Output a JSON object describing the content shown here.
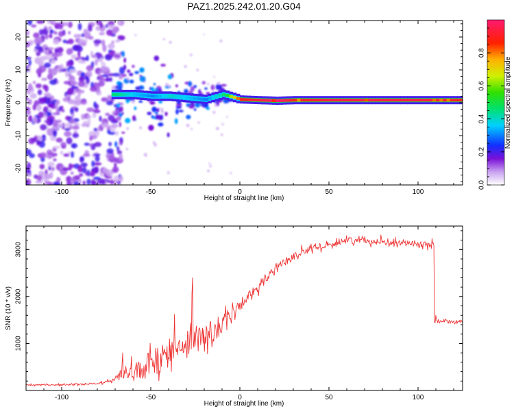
{
  "title": "PAZ1.2025.242.01.20.G04",
  "chart_data": [
    {
      "type": "heatmap",
      "name": "spectrogram",
      "xlabel": "Height of straight line (km)",
      "ylabel": "Frequency (Hz)",
      "xlim": [
        -120,
        125
      ],
      "ylim": [
        -25,
        25
      ],
      "xticks": [
        "-100",
        "-50",
        "0",
        "50",
        "100"
      ],
      "xtick_values": [
        -100,
        -50,
        0,
        50,
        100
      ],
      "yticks": [
        "20",
        "10",
        "0",
        "-10",
        "-20"
      ],
      "ytick_values": [
        20,
        10,
        0,
        -10,
        -20
      ],
      "ridge": {
        "description_values": "dominant frequency ridge near 0.5 Hz",
        "x": [
          -70,
          -60,
          -50,
          -40,
          -30,
          -20,
          -10,
          0,
          10,
          20,
          30,
          50,
          75,
          100,
          125
        ],
        "freq": [
          2.5,
          2.5,
          2.0,
          2.0,
          1.5,
          1.0,
          2.5,
          1.0,
          0.8,
          0.6,
          0.8,
          0.8,
          0.8,
          0.8,
          0.8
        ],
        "amplitude": [
          0.45,
          0.35,
          0.3,
          0.4,
          0.35,
          0.3,
          0.45,
          0.9,
          0.95,
          1.0,
          0.9,
          0.95,
          0.95,
          0.95,
          0.9
        ]
      },
      "noise_region_x": [
        -120,
        -70
      ],
      "colorbar": {
        "label": "Normalized spectral amplitude",
        "range": [
          0,
          1
        ],
        "ticks": [
          "0.0",
          "0.2",
          "0.4",
          "0.6",
          "0.8"
        ],
        "tick_values": [
          0.0,
          0.2,
          0.4,
          0.6,
          0.8
        ]
      }
    },
    {
      "type": "line",
      "name": "snr",
      "xlabel": "Height of straight line (km)",
      "ylabel": "SNR (10 * v/v)",
      "xlim": [
        -120,
        125
      ],
      "ylim": [
        0,
        3500
      ],
      "xticks": [
        "-100",
        "-50",
        "0",
        "50",
        "100"
      ],
      "xtick_values": [
        -100,
        -50,
        0,
        50,
        100
      ],
      "yticks": [
        "1000",
        "2000",
        "3000"
      ],
      "ytick_values": [
        1000,
        2000,
        3000
      ],
      "color": "#ee3333",
      "x": [
        -120,
        -100,
        -80,
        -75,
        -70,
        -65,
        -60,
        -55,
        -50,
        -45,
        -40,
        -35,
        -30,
        -25,
        -20,
        -15,
        -10,
        -5,
        0,
        5,
        10,
        15,
        20,
        25,
        30,
        35,
        40,
        45,
        50,
        55,
        60,
        65,
        70,
        75,
        80,
        85,
        90,
        95,
        100,
        105,
        109,
        110,
        115,
        120,
        125
      ],
      "values": [
        120,
        120,
        140,
        180,
        260,
        340,
        420,
        500,
        580,
        660,
        760,
        860,
        950,
        1050,
        1150,
        1250,
        1400,
        1600,
        1800,
        2000,
        2200,
        2400,
        2600,
        2750,
        2850,
        2950,
        3000,
        3050,
        3100,
        3150,
        3200,
        3200,
        3200,
        3180,
        3180,
        3150,
        3150,
        3130,
        3120,
        3100,
        3100,
        1500,
        1480,
        1470,
        1460
      ],
      "spread": [
        30,
        40,
        60,
        80,
        150,
        250,
        350,
        450,
        550,
        650,
        700,
        650,
        600,
        650,
        550,
        500,
        500,
        350,
        300,
        250,
        220,
        200,
        180,
        180,
        170,
        170,
        160,
        160,
        160,
        160,
        160,
        160,
        160,
        160,
        160,
        160,
        160,
        160,
        160,
        160,
        160,
        80,
        80,
        80,
        80
      ]
    }
  ]
}
